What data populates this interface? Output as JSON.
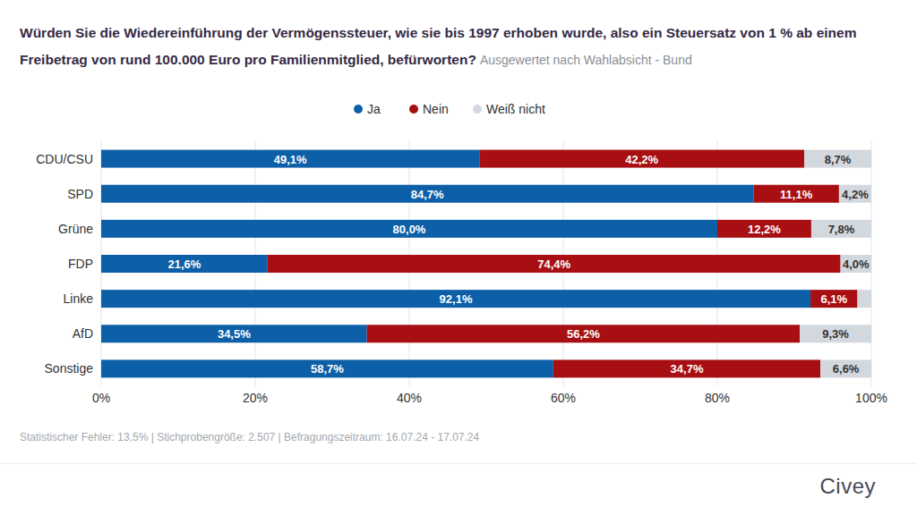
{
  "chart_data": {
    "type": "bar",
    "orientation": "horizontal",
    "stacked": true,
    "data_labels": true,
    "grid": true,
    "legend": "top",
    "title": "Würden Sie die Wiedereinführung der Vermögenssteuer, wie sie bis 1997 erhoben wurde, also ein Steuersatz von 1 % ab einem Freibetrag von rund 100.000 Euro pro Familienmitglied, befürworten?",
    "subtitle": "Ausgewertet nach Wahlabsicht - Bund",
    "annotations": [
      "Statistischer Fehler: 13,5% | Stichprobengröße: 2.507 | Befragungszeitraum: 16.07.24 - 17.07.24",
      "Civey"
    ],
    "categories": [
      "CDU/CSU",
      "SPD",
      "Grüne",
      "FDP",
      "Linke",
      "AfD",
      "Sonstige"
    ],
    "xlim": [
      0,
      100
    ],
    "xticks": [
      {
        "value": 0,
        "label": "0%"
      },
      {
        "value": 20,
        "label": "20%"
      },
      {
        "value": 40,
        "label": "40%"
      },
      {
        "value": 60,
        "label": "60%"
      },
      {
        "value": 80,
        "label": "80%"
      },
      {
        "value": 100,
        "label": "100%"
      }
    ],
    "series": [
      {
        "name": "Ja",
        "color": "#0d5fa8",
        "values": [
          49.1,
          84.7,
          80.0,
          21.6,
          92.1,
          34.5,
          58.7
        ],
        "value_labels": [
          "49,1%",
          "84,7%",
          "80,0%",
          "21,6%",
          "92,1%",
          "34,5%",
          "58,7%"
        ]
      },
      {
        "name": "Nein",
        "color": "#a80f12",
        "values": [
          42.2,
          11.1,
          12.2,
          74.4,
          6.1,
          56.2,
          34.7
        ],
        "value_labels": [
          "42,2%",
          "11,1%",
          "12,2%",
          "74,4%",
          "6,1%",
          "56,2%",
          "34,7%"
        ]
      },
      {
        "name": "Weiß nicht",
        "color": "#d3d8de",
        "values": [
          8.7,
          4.2,
          7.8,
          4.0,
          1.8,
          9.3,
          6.6
        ],
        "value_labels": [
          "8,7%",
          "4,2%",
          "7,8%",
          "4,0%",
          null,
          "9,3%",
          "6,6%"
        ]
      }
    ]
  }
}
